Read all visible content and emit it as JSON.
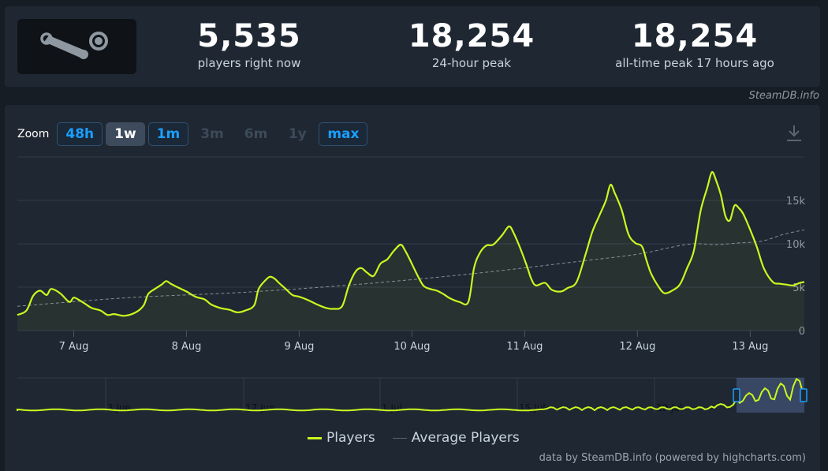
{
  "stats": [
    {
      "value": "5,535",
      "label": "players right now"
    },
    {
      "value": "18,254",
      "label": "24-hour peak"
    },
    {
      "value": "18,254",
      "label": "all-time peak 17 hours ago"
    }
  ],
  "credit_top": "SteamDB.info",
  "zoom": {
    "label": "Zoom",
    "buttons": [
      {
        "label": "48h",
        "state": "enabled"
      },
      {
        "label": "1w",
        "state": "active"
      },
      {
        "label": "1m",
        "state": "enabled"
      },
      {
        "label": "3m",
        "state": "disabled"
      },
      {
        "label": "6m",
        "state": "disabled"
      },
      {
        "label": "1y",
        "state": "disabled"
      },
      {
        "label": "max",
        "state": "enabled"
      }
    ]
  },
  "icons": {
    "logo": "steam-logo-icon",
    "download": "download-icon"
  },
  "colors": {
    "players": "#c9f81f",
    "average": "#8a8f96",
    "accent": "#1a9fff"
  },
  "chart_data": {
    "type": "line",
    "y_ticks": [
      "0",
      "5k",
      "10k",
      "15k"
    ],
    "ylim": [
      0,
      20000
    ],
    "x_ticks": [
      "7 Aug",
      "8 Aug",
      "9 Aug",
      "10 Aug",
      "11 Aug",
      "12 Aug",
      "13 Aug"
    ],
    "xlim": [
      -0.5,
      6.48
    ],
    "grid": true,
    "legend_position": "bottom-center",
    "series": [
      {
        "name": "Players",
        "x": [
          -0.5,
          -0.42,
          -0.36,
          -0.3,
          -0.24,
          -0.2,
          -0.12,
          -0.04,
          0.0,
          0.05,
          0.1,
          0.16,
          0.24,
          0.3,
          0.36,
          0.45,
          0.55,
          0.62,
          0.66,
          0.72,
          0.78,
          0.82,
          0.86,
          0.92,
          1.0,
          1.08,
          1.16,
          1.22,
          1.3,
          1.38,
          1.45,
          1.52,
          1.6,
          1.64,
          1.7,
          1.74,
          1.78,
          1.82,
          1.88,
          1.94,
          2.0,
          2.08,
          2.16,
          2.24,
          2.3,
          2.38,
          2.44,
          2.5,
          2.55,
          2.6,
          2.66,
          2.72,
          2.78,
          2.84,
          2.9,
          2.94,
          2.98,
          3.04,
          3.1,
          3.16,
          3.22,
          3.28,
          3.34,
          3.42,
          3.5,
          3.55,
          3.6,
          3.66,
          3.72,
          3.8,
          3.86,
          3.9,
          3.96,
          4.02,
          4.06,
          4.1,
          4.18,
          4.24,
          4.32,
          4.38,
          4.46,
          4.54,
          4.6,
          4.66,
          4.72,
          4.76,
          4.8,
          4.86,
          4.92,
          4.98,
          5.04,
          5.08,
          5.12,
          5.18,
          5.24,
          5.32,
          5.38,
          5.44,
          5.5,
          5.56,
          5.62,
          5.66,
          5.7,
          5.74,
          5.78,
          5.82,
          5.86,
          5.9,
          5.94,
          6.0,
          6.06,
          6.12,
          6.2,
          6.26,
          6.32,
          6.38,
          6.44,
          6.48
        ],
        "y": [
          1800,
          2300,
          4000,
          4600,
          4100,
          4800,
          4300,
          3300,
          3800,
          3500,
          3100,
          2600,
          2300,
          1800,
          1900,
          1700,
          2100,
          2900,
          4200,
          4800,
          5300,
          5700,
          5400,
          5000,
          4500,
          3900,
          3600,
          3000,
          2600,
          2400,
          2100,
          2300,
          2900,
          4800,
          5800,
          6200,
          6000,
          5500,
          4800,
          4100,
          3900,
          3500,
          3000,
          2600,
          2500,
          2800,
          5200,
          6800,
          7200,
          6700,
          6300,
          7700,
          8200,
          9200,
          9900,
          9200,
          8200,
          6600,
          5200,
          4800,
          4600,
          4200,
          3700,
          3300,
          3300,
          7200,
          8900,
          9800,
          9900,
          11000,
          12000,
          11300,
          9500,
          7400,
          5900,
          5200,
          5500,
          4700,
          4500,
          4900,
          5600,
          8800,
          11400,
          13200,
          15000,
          16800,
          15800,
          13900,
          11100,
          10100,
          9700,
          8100,
          6600,
          5200,
          4300,
          4700,
          5400,
          7200,
          9200,
          13800,
          16500,
          18254,
          17200,
          15600,
          13200,
          12700,
          14400,
          14100,
          13400,
          11600,
          9600,
          7200,
          5600,
          5400,
          5300,
          5200,
          5500,
          5600
        ]
      },
      {
        "name": "Average Players",
        "x": [
          -0.5,
          0.5,
          1.5,
          2.5,
          3.5,
          4.5,
          5.0,
          5.3,
          5.5,
          5.7,
          5.9,
          6.1,
          6.3,
          6.48
        ],
        "y": [
          2800,
          3800,
          4400,
          5300,
          6500,
          8000,
          8800,
          9600,
          10000,
          9900,
          10100,
          10300,
          11100,
          11600
        ]
      }
    ],
    "navigator_ticks": [
      "3 Jun",
      "17 Jun",
      "1 Jul",
      "15 Jul",
      "29 Jul"
    ]
  },
  "credit_bottom": "data by SteamDB.info (powered by highcharts.com)"
}
